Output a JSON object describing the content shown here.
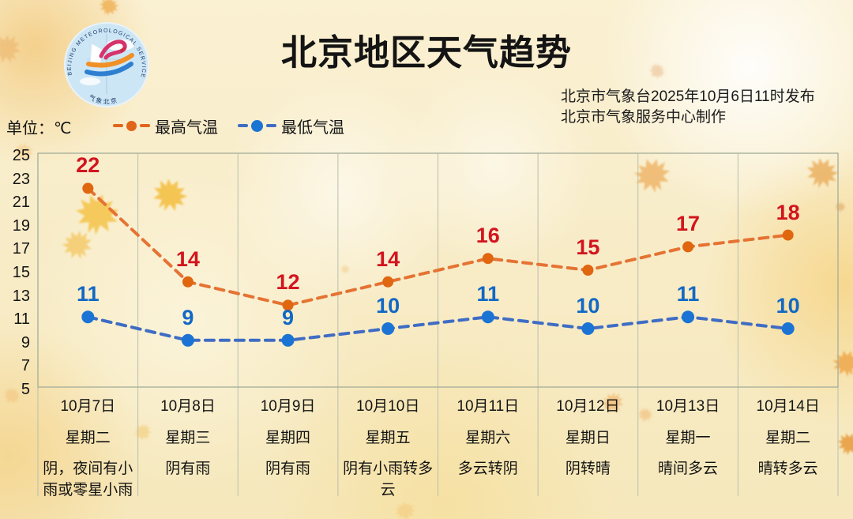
{
  "header": {
    "title": "北京地区天气趋势",
    "issued_line1": "北京市气象台2025年10月6日11时发布",
    "issued_line2": "北京市气象服务中心制作",
    "logo": {
      "arc_text": "BEIJING METEOROLOGICAL SERVICE",
      "bottom_text": "气象北京"
    }
  },
  "unit_label": "单位：℃",
  "legend": {
    "high": {
      "label": "最高气温",
      "color": "#e0661a"
    },
    "low": {
      "label": "最低气温",
      "color": "#1b74d4"
    }
  },
  "chart_data": {
    "type": "line",
    "title": "北京地区天气趋势",
    "categories": [
      "10月7日",
      "10月8日",
      "10月9日",
      "10月10日",
      "10月11日",
      "10月12日",
      "10月13日",
      "10月14日"
    ],
    "ylim": [
      5,
      25
    ],
    "yticks": [
      25,
      23,
      21,
      19,
      17,
      15,
      13,
      11,
      9,
      7,
      5
    ],
    "grid": "vertical-only",
    "grid_color": "#b9bfae",
    "legend_position": "top-left",
    "series": [
      {
        "name": "最高气温",
        "values": [
          22,
          14,
          12,
          14,
          16,
          15,
          17,
          18
        ],
        "line_color": "#e57333",
        "marker_color": "#e0660f",
        "label_color": "#d2151e",
        "line_style": "dashed"
      },
      {
        "name": "最低气温",
        "values": [
          11,
          9,
          9,
          10,
          11,
          10,
          11,
          10
        ],
        "line_color": "#3f6cc4",
        "marker_color": "#1b74d4",
        "label_color": "#1268c4",
        "line_style": "dashed"
      }
    ]
  },
  "days": [
    {
      "date": "10月7日",
      "weekday": "星期二",
      "weather": "阴，夜间有小雨或零星小雨"
    },
    {
      "date": "10月8日",
      "weekday": "星期三",
      "weather": "阴有雨"
    },
    {
      "date": "10月9日",
      "weekday": "星期四",
      "weather": "阴有雨"
    },
    {
      "date": "10月10日",
      "weekday": "星期五",
      "weather": "阴有小雨转多云"
    },
    {
      "date": "10月11日",
      "weekday": "星期六",
      "weather": "多云转阴"
    },
    {
      "date": "10月12日",
      "weekday": "星期日",
      "weather": "阴转晴"
    },
    {
      "date": "10月13日",
      "weekday": "星期一",
      "weather": "晴间多云"
    },
    {
      "date": "10月14日",
      "weekday": "星期二",
      "weather": "晴转多云"
    }
  ]
}
